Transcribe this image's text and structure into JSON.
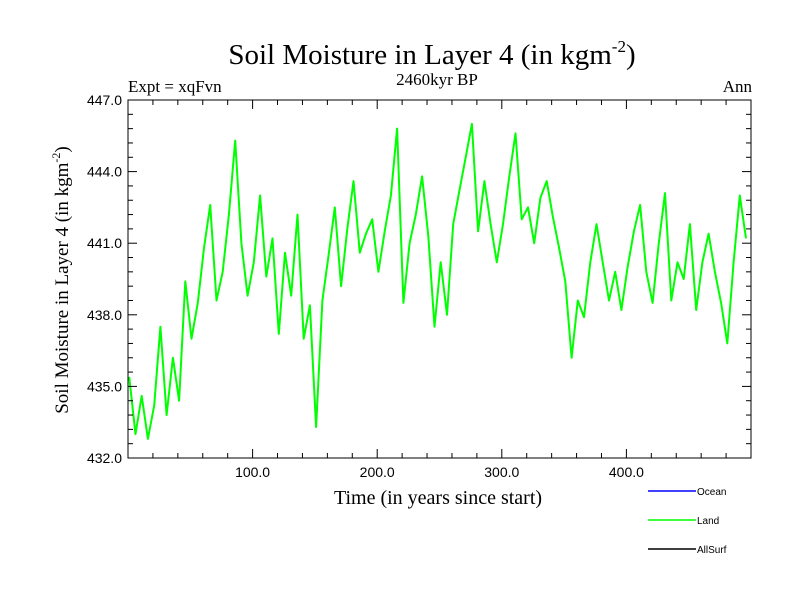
{
  "chart_data": {
    "type": "line",
    "title": "Soil Moisture in Layer 4 (in kgm",
    "title_sup": "-2",
    "title_close": ")",
    "subtitle": "2460kyr BP",
    "left_label": "Expt = xqFvn",
    "right_label": "Ann",
    "xlabel": "Time (in years since start)",
    "ylabel": "Soil Moisture in Layer 4 (in kgm",
    "ylabel_sup": "-2",
    "ylabel_close": ")",
    "xlim": [
      0,
      500
    ],
    "ylim": [
      432,
      447
    ],
    "x_ticks": [
      100,
      200,
      300,
      400
    ],
    "x_tick_labels": [
      "100.0",
      "200.0",
      "300.0",
      "400.0"
    ],
    "y_ticks": [
      432,
      435,
      438,
      441,
      444,
      447
    ],
    "y_tick_labels": [
      "432.0",
      "435.0",
      "438.0",
      "441.0",
      "444.0",
      "447.0"
    ],
    "legend": [
      {
        "name": "Ocean",
        "color": "#0000ff"
      },
      {
        "name": "Land",
        "color": "#00ff00"
      },
      {
        "name": "AllSurf",
        "color": "#000000"
      }
    ],
    "series": [
      {
        "name": "Land",
        "color": "#00ff00",
        "x_start": 1,
        "x_step": 5,
        "values": [
          435.4,
          433.0,
          434.6,
          432.8,
          434.2,
          437.5,
          433.8,
          436.2,
          434.4,
          439.4,
          437.0,
          438.5,
          440.8,
          442.6,
          438.6,
          439.8,
          442.2,
          445.3,
          441.0,
          438.8,
          440.2,
          443.0,
          439.6,
          441.2,
          437.2,
          440.6,
          438.8,
          442.2,
          437.0,
          438.4,
          433.3,
          438.6,
          440.5,
          442.5,
          439.2,
          441.6,
          443.6,
          440.6,
          441.4,
          442.0,
          439.8,
          441.5,
          443.0,
          445.8,
          438.5,
          441.0,
          442.2,
          443.8,
          441.3,
          437.5,
          440.2,
          438.0,
          441.8,
          443.2,
          444.6,
          446.0,
          441.5,
          443.6,
          441.8,
          440.2,
          441.8,
          443.8,
          445.6,
          442.0,
          442.5,
          441.0,
          442.9,
          443.6,
          442.1,
          440.8,
          439.4,
          436.2,
          438.6,
          437.9,
          440.2,
          441.8,
          440.2,
          438.6,
          439.8,
          438.2,
          440.0,
          441.5,
          442.6,
          439.8,
          438.5,
          441.0,
          443.1,
          438.6,
          440.2,
          439.5,
          441.8,
          438.2,
          440.2,
          441.4,
          439.8,
          438.5,
          436.8,
          440.2,
          443.0,
          441.2
        ]
      }
    ]
  }
}
